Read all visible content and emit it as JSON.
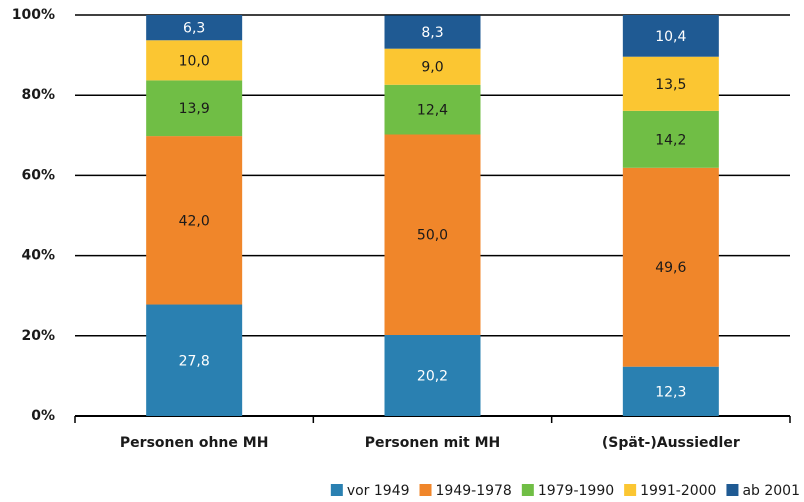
{
  "chart_data": {
    "type": "stacked_bar",
    "categories": [
      "Personen ohne MH",
      "Personen mit MH",
      "(Spät-)Aussiedler"
    ],
    "series": [
      {
        "name": "vor 1949",
        "color": "#2a80b1",
        "values": [
          27.8,
          20.2,
          12.3
        ],
        "value_labels": [
          "27,8",
          "20,2",
          "12,3"
        ]
      },
      {
        "name": "1949-1978",
        "color": "#f0862a",
        "values": [
          42.0,
          50.0,
          49.6
        ],
        "value_labels": [
          "42,0",
          "50,0",
          "49,6"
        ]
      },
      {
        "name": "1979-1990",
        "color": "#70be45",
        "values": [
          13.9,
          12.4,
          14.2
        ],
        "value_labels": [
          "13,9",
          "12,4",
          "14,2"
        ]
      },
      {
        "name": "1991-2000",
        "color": "#fbc632",
        "values": [
          10.0,
          9.0,
          13.5
        ],
        "value_labels": [
          "10,0",
          "9,0",
          "13,5"
        ]
      },
      {
        "name": "ab 2001",
        "color": "#1f5a93",
        "values": [
          6.3,
          8.3,
          10.4
        ],
        "value_labels": [
          "6,3",
          "8,3",
          "10,4"
        ]
      }
    ],
    "ylim": [
      0,
      100
    ],
    "yticks": [
      {
        "value": 0,
        "label": "0%"
      },
      {
        "value": 20,
        "label": "20%"
      },
      {
        "value": 40,
        "label": "40%"
      },
      {
        "value": 60,
        "label": "60%"
      },
      {
        "value": 80,
        "label": "80%"
      },
      {
        "value": 100,
        "label": "100%"
      }
    ],
    "grid": true,
    "legend": "bottom-right"
  }
}
